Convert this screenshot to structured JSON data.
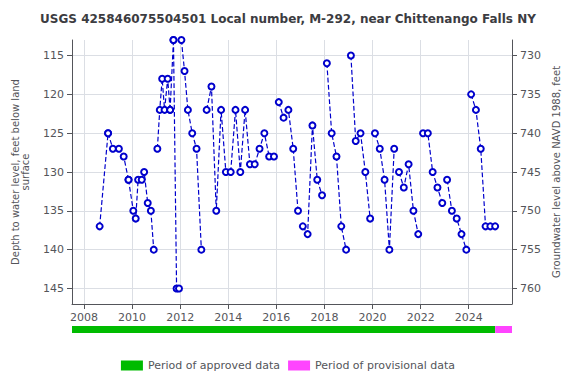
{
  "chart_data": {
    "type": "line",
    "title": "USGS 425846075504501 Local number, M-292, near Chittenango Falls NY",
    "ylabel": "Depth to water level, feet below land\nsurface",
    "y2label": "Groundwater level above NAVD 1988, feet",
    "xlim": [
      2007.5,
      2025.8
    ],
    "xticks": [
      2008,
      2010,
      2012,
      2014,
      2016,
      2018,
      2020,
      2022,
      2024
    ],
    "ylim": [
      147,
      113
    ],
    "yticks": [
      115,
      120,
      125,
      130,
      135,
      140,
      145
    ],
    "y2lim": [
      762,
      728
    ],
    "y2ticks": [
      730,
      735,
      740,
      745,
      750,
      755,
      760
    ],
    "grid": true,
    "legend": "bottom",
    "series": [
      {
        "type": "line",
        "color": "#0000CC",
        "line_style": "dashed",
        "marker": "open-circle",
        "x": [
          2008.65,
          2009.0,
          null,
          2009.0,
          2009.2,
          2009.45,
          2009.65,
          2009.85,
          null,
          2009.85,
          2010.05,
          2010.15,
          2010.25,
          2010.4,
          2010.5,
          2010.65,
          2010.78,
          2010.9,
          null,
          2011.05,
          2011.15,
          2011.25,
          2011.35,
          2011.48,
          2011.58,
          null,
          2011.58,
          2011.72,
          null,
          2011.72,
          2011.85,
          2011.95,
          null,
          2012.05,
          2012.18,
          2012.32,
          2012.5,
          2012.68,
          2012.88,
          null,
          2013.1,
          2013.3,
          2013.5,
          2013.7,
          2013.9,
          null,
          2014.1,
          2014.3,
          2014.5,
          2014.7,
          2014.9,
          null,
          2015.1,
          2015.3,
          2015.5,
          2015.7,
          2015.9,
          null,
          2016.1,
          2016.3,
          2016.5,
          2016.7,
          2016.9,
          null,
          2017.1,
          2017.3,
          2017.5,
          2017.7,
          2017.9,
          null,
          2018.1,
          2018.3,
          2018.5,
          2018.7,
          2018.9,
          null,
          2019.1,
          2019.3,
          2019.5,
          2019.7,
          2019.9,
          null,
          2020.1,
          2020.3,
          2020.5,
          2020.7,
          2020.9,
          null,
          2021.1,
          2021.3,
          2021.5,
          2021.7,
          2021.9,
          null,
          2022.1,
          2022.3,
          2022.5,
          2022.7,
          2022.9,
          null,
          2023.1,
          2023.3,
          2023.5,
          2023.7,
          2023.9,
          null,
          2024.1,
          2024.3,
          2024.5,
          2024.7,
          2024.9,
          2025.1
        ],
        "values": [
          137,
          125,
          null,
          125,
          127,
          127,
          128,
          131,
          null,
          131,
          135,
          136,
          131,
          131,
          130,
          134,
          135,
          140,
          null,
          127,
          122,
          118,
          122,
          118,
          122,
          null,
          122,
          113,
          null,
          113,
          145,
          145,
          null,
          113,
          117,
          122,
          125,
          127,
          140,
          null,
          122,
          119,
          135,
          122,
          130,
          null,
          130,
          122,
          130,
          122,
          129,
          null,
          129,
          127,
          125,
          128,
          128,
          null,
          121,
          123,
          122,
          127,
          135,
          null,
          137,
          138,
          124,
          131,
          133,
          null,
          116,
          125,
          128,
          137,
          140,
          null,
          115,
          126,
          125,
          130,
          136,
          null,
          125,
          127,
          131,
          140,
          127,
          null,
          130,
          132,
          129,
          135,
          138,
          null,
          125,
          125,
          130,
          132,
          134,
          null,
          131,
          135,
          136,
          138,
          140,
          null,
          120,
          122,
          127,
          137,
          137,
          137
        ]
      },
      {
        "type": "band",
        "name": "Period of approved data",
        "color": "#00BB00",
        "x": [
          2007.5,
          2025.1
        ]
      },
      {
        "type": "band",
        "name": "Period of provisional data",
        "color": "#FF44FF",
        "x": [
          2025.1,
          2025.8
        ]
      }
    ]
  }
}
